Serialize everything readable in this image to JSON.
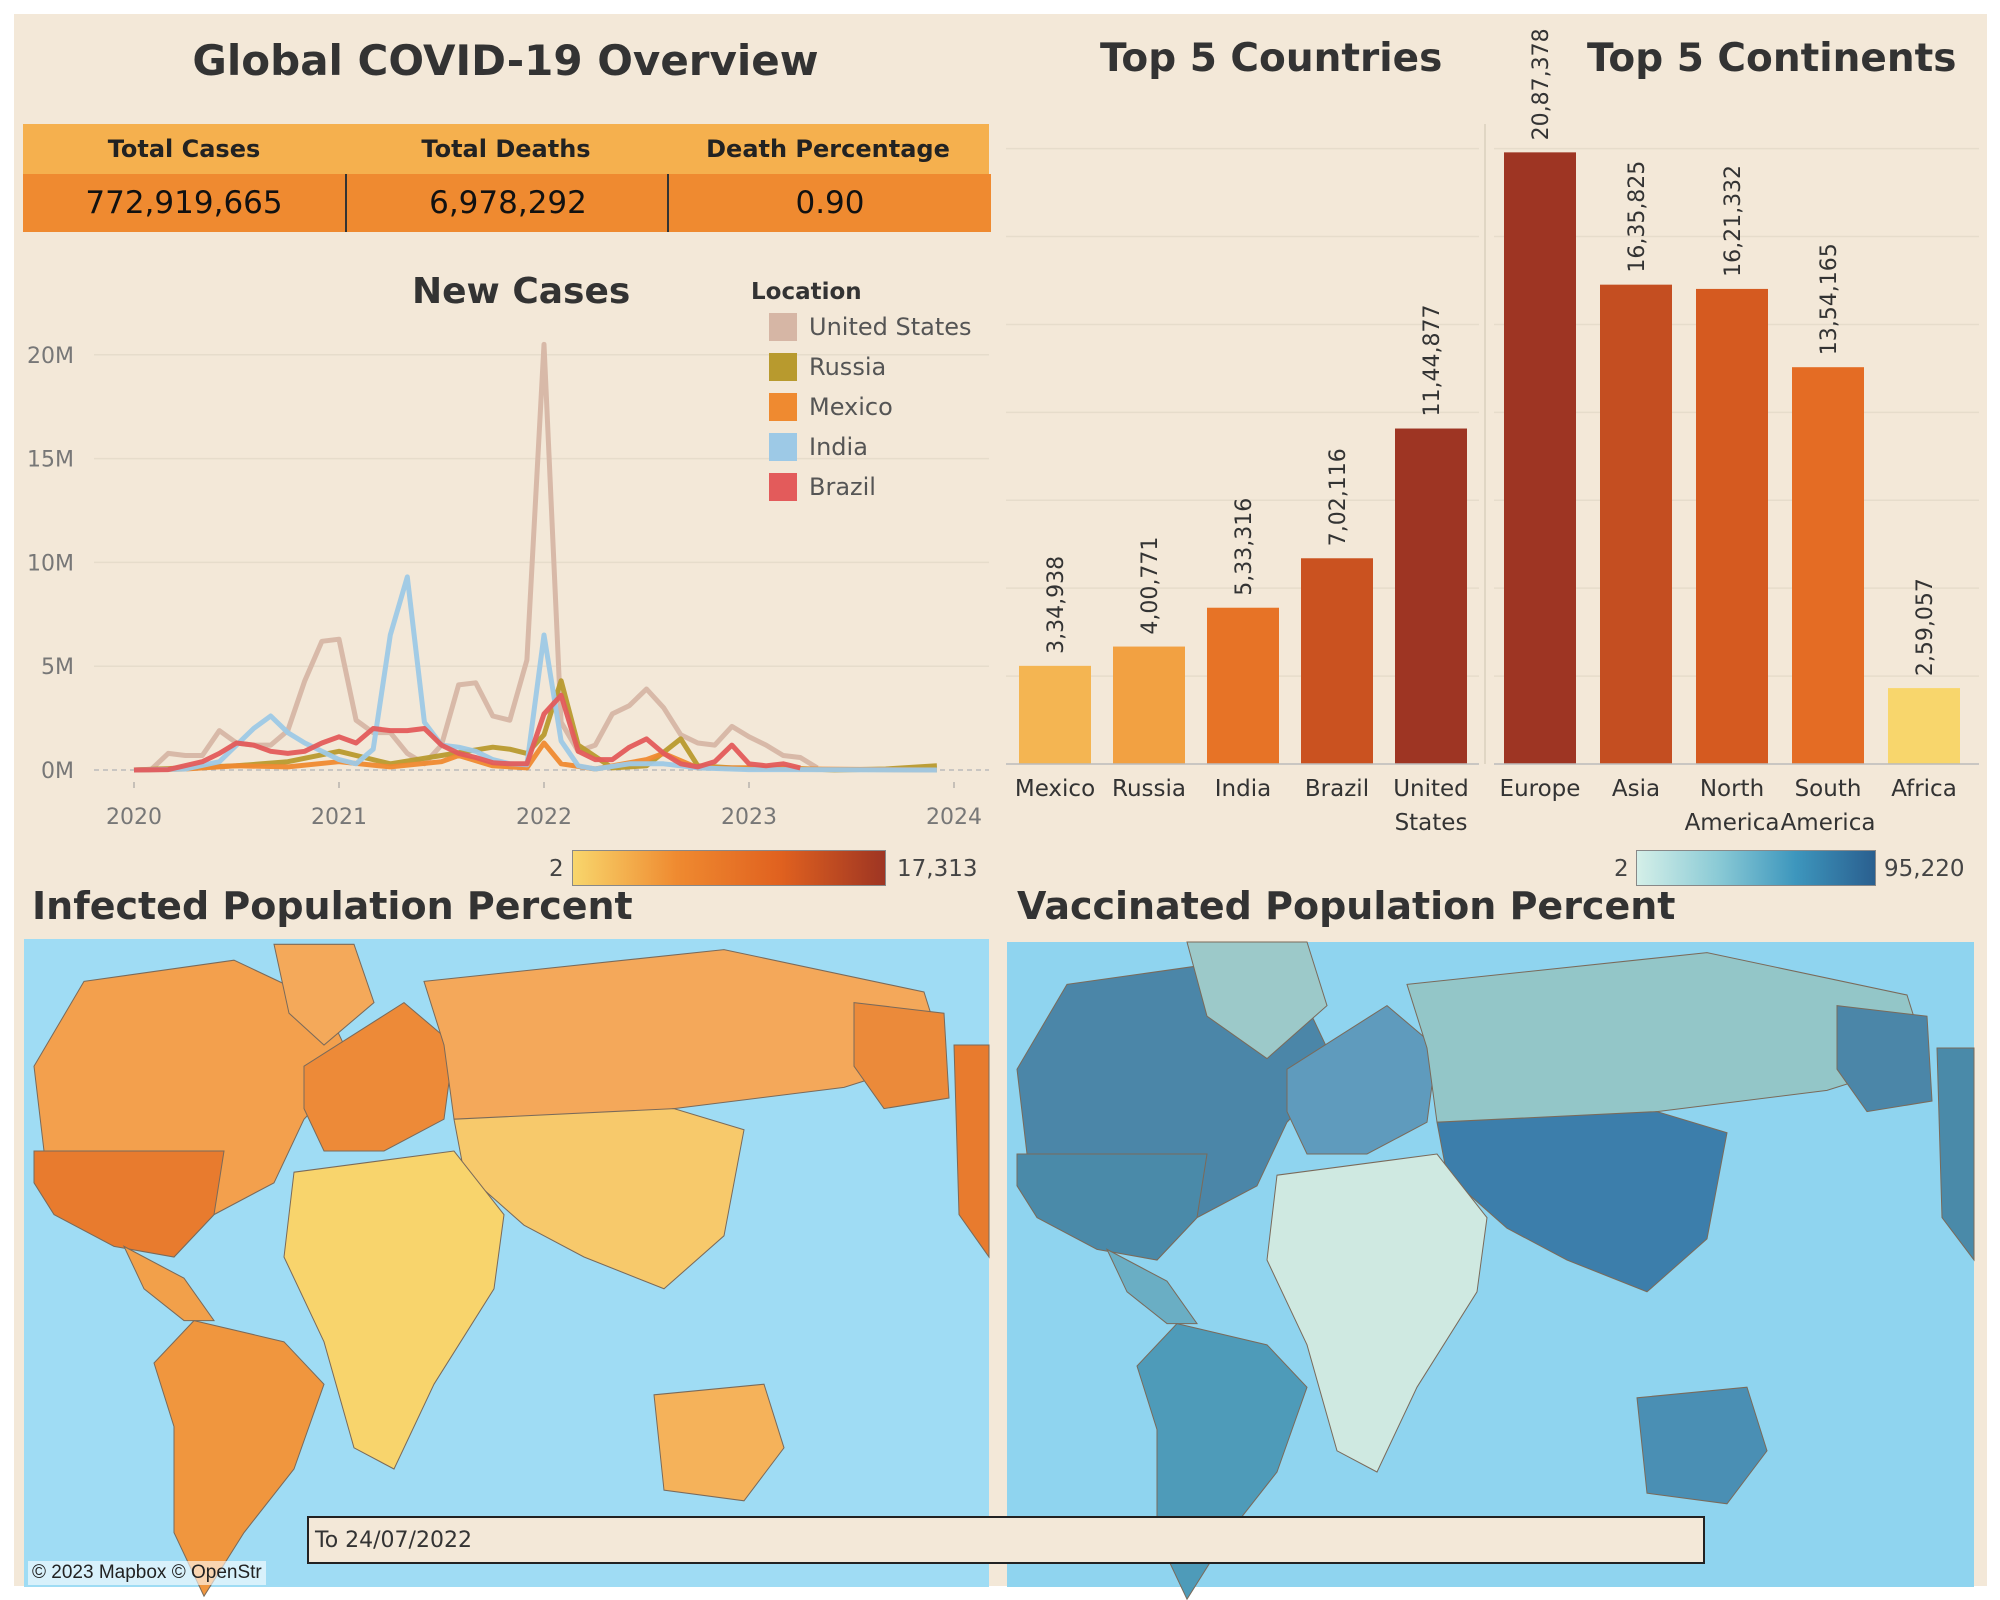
{
  "dashboard": {
    "title": "Global COVID-19 Overview",
    "kpis": [
      {
        "label": "Total Cases",
        "value": "772,919,665"
      },
      {
        "label": "Total Deaths",
        "value": "6,978,292"
      },
      {
        "label": "Death Percentage",
        "value": "0.90"
      }
    ],
    "countries_title": "Top 5 Countries",
    "continents_title": "Top 5 Continents",
    "infected_title": "Infected Population Percent",
    "vaccinated_title": "Vaccinated Population Percent",
    "map_attribution": "© 2023 Mapbox © OpenStr",
    "date_filter": "To 24/07/2022",
    "colors": {
      "background": "#f3e8d8",
      "kpi_header": "#f5b04e",
      "kpi_value": "#ef8a30",
      "ocean": "#9fdcf4"
    },
    "orange_scale": {
      "min": "2",
      "max": "17,313",
      "colors": [
        "#f8d66c",
        "#ef8a30",
        "#e0611f",
        "#9e3523"
      ]
    },
    "blue_scale": {
      "min": "2",
      "max": "95,220",
      "colors": [
        "#d4efe8",
        "#8ccbd6",
        "#3d96bd",
        "#2a5f8f"
      ]
    }
  },
  "chart_data": [
    {
      "type": "line",
      "title": "New Cases",
      "legend_title": "Location",
      "legend_position": "top-right",
      "x_ticks": [
        "2020",
        "2021",
        "2022",
        "2023",
        "2024"
      ],
      "xlim": [
        "2020-01",
        "2024-01"
      ],
      "y_ticks": [
        "0M",
        "5M",
        "10M",
        "15M",
        "20M"
      ],
      "ylim": [
        0,
        21000000
      ],
      "grid": true,
      "series": [
        {
          "name": "United States",
          "color": "#d6b6a5",
          "x": [
            "2020-01",
            "2020-02",
            "2020-03",
            "2020-04",
            "2020-05",
            "2020-06",
            "2020-07",
            "2020-08",
            "2020-09",
            "2020-10",
            "2020-11",
            "2020-12",
            "2021-01",
            "2021-02",
            "2021-03",
            "2021-04",
            "2021-05",
            "2021-06",
            "2021-07",
            "2021-08",
            "2021-09",
            "2021-10",
            "2021-11",
            "2021-12",
            "2022-01",
            "2022-02",
            "2022-03",
            "2022-04",
            "2022-05",
            "2022-06",
            "2022-07",
            "2022-08",
            "2022-09",
            "2022-10",
            "2022-11",
            "2022-12",
            "2023-01",
            "2023-02",
            "2023-03",
            "2023-04",
            "2023-05"
          ],
          "values": [
            0,
            20000,
            800000,
            700000,
            700000,
            1900000,
            1300000,
            1200000,
            1200000,
            1900000,
            4300000,
            6200000,
            6300000,
            2400000,
            1800000,
            1800000,
            800000,
            300000,
            1200000,
            4100000,
            4200000,
            2600000,
            2400000,
            5300000,
            20500000,
            2300000,
            900000,
            1200000,
            2700000,
            3100000,
            3900000,
            3000000,
            1700000,
            1300000,
            1200000,
            2100000,
            1600000,
            1200000,
            700000,
            600000,
            100000
          ]
        },
        {
          "name": "Russia",
          "color": "#b89a2e",
          "x": [
            "2020-01",
            "2020-04",
            "2020-07",
            "2020-10",
            "2021-01",
            "2021-04",
            "2021-07",
            "2021-10",
            "2021-11",
            "2021-12",
            "2022-01",
            "2022-02",
            "2022-03",
            "2022-05",
            "2022-07",
            "2022-09",
            "2022-10",
            "2022-12",
            "2023-03",
            "2023-06",
            "2023-09",
            "2023-12"
          ],
          "values": [
            0,
            100000,
            200000,
            400000,
            900000,
            300000,
            700000,
            1100000,
            1000000,
            800000,
            1700000,
            4300000,
            1200000,
            100000,
            200000,
            1500000,
            200000,
            100000,
            100000,
            0,
            50000,
            200000
          ]
        },
        {
          "name": "Mexico",
          "color": "#ef8a30",
          "x": [
            "2020-01",
            "2020-04",
            "2020-07",
            "2020-10",
            "2021-01",
            "2021-04",
            "2021-07",
            "2021-08",
            "2021-10",
            "2021-12",
            "2022-01",
            "2022-02",
            "2022-04",
            "2022-07",
            "2022-08",
            "2022-10",
            "2023-01",
            "2023-04",
            "2023-12"
          ],
          "values": [
            0,
            50000,
            200000,
            150000,
            400000,
            150000,
            400000,
            700000,
            200000,
            100000,
            1300000,
            300000,
            50000,
            500000,
            800000,
            100000,
            100000,
            50000,
            0
          ]
        },
        {
          "name": "India",
          "color": "#9dc9e6",
          "x": [
            "2020-01",
            "2020-04",
            "2020-06",
            "2020-08",
            "2020-09",
            "2020-10",
            "2020-11",
            "2020-12",
            "2021-01",
            "2021-02",
            "2021-03",
            "2021-04",
            "2021-05",
            "2021-06",
            "2021-07",
            "2021-08",
            "2021-09",
            "2021-10",
            "2021-11",
            "2021-12",
            "2022-01",
            "2022-02",
            "2022-03",
            "2022-04",
            "2022-06",
            "2022-08",
            "2022-10",
            "2023-01",
            "2023-04",
            "2023-12"
          ],
          "values": [
            0,
            50000,
            400000,
            2000000,
            2600000,
            1800000,
            1300000,
            900000,
            500000,
            300000,
            1000000,
            6500000,
            9300000,
            2300000,
            1200000,
            1100000,
            900000,
            500000,
            300000,
            250000,
            6500000,
            1400000,
            200000,
            50000,
            300000,
            300000,
            100000,
            20000,
            20000,
            0
          ]
        },
        {
          "name": "Brazil",
          "color": "#e35b5b",
          "x": [
            "2020-01",
            "2020-03",
            "2020-05",
            "2020-06",
            "2020-07",
            "2020-08",
            "2020-09",
            "2020-10",
            "2020-11",
            "2020-12",
            "2021-01",
            "2021-02",
            "2021-03",
            "2021-04",
            "2021-05",
            "2021-06",
            "2021-07",
            "2021-08",
            "2021-09",
            "2021-10",
            "2021-11",
            "2021-12",
            "2022-01",
            "2022-02",
            "2022-03",
            "2022-04",
            "2022-05",
            "2022-06",
            "2022-07",
            "2022-08",
            "2022-09",
            "2022-10",
            "2022-11",
            "2022-12",
            "2023-01",
            "2023-02",
            "2023-03",
            "2023-04"
          ],
          "values": [
            0,
            20000,
            400000,
            800000,
            1300000,
            1200000,
            900000,
            800000,
            900000,
            1300000,
            1600000,
            1300000,
            2000000,
            1900000,
            1900000,
            2000000,
            1200000,
            800000,
            600000,
            350000,
            300000,
            300000,
            2700000,
            3600000,
            900000,
            500000,
            500000,
            1100000,
            1500000,
            800000,
            300000,
            150000,
            400000,
            1200000,
            300000,
            200000,
            300000,
            100000
          ]
        }
      ]
    },
    {
      "type": "bar",
      "title": "Top 5 Countries",
      "categories": [
        "Mexico",
        "Russia",
        "India",
        "Brazil",
        "United States"
      ],
      "values": [
        334938,
        400771,
        533316,
        702116,
        1144877
      ],
      "labels": [
        "3,34,938",
        "4,00,771",
        "5,33,316",
        "7,02,116",
        "11,44,877"
      ],
      "color_values": [
        2500,
        4000,
        9000,
        13500,
        17313
      ],
      "ylim": [
        0,
        2150000
      ],
      "grid": true
    },
    {
      "type": "bar",
      "title": "Top 5 Continents",
      "categories": [
        "Europe",
        "Asia",
        "North America",
        "South America",
        "Africa"
      ],
      "values": [
        2087378,
        1635825,
        1621332,
        1354165,
        259057
      ],
      "labels": [
        "20,87,378",
        "16,35,825",
        "16,21,332",
        "13,54,165",
        "2,59,057"
      ],
      "color_values": [
        17313,
        14000,
        12500,
        10000,
        2
      ],
      "ylim": [
        0,
        2150000
      ],
      "grid": true
    }
  ]
}
